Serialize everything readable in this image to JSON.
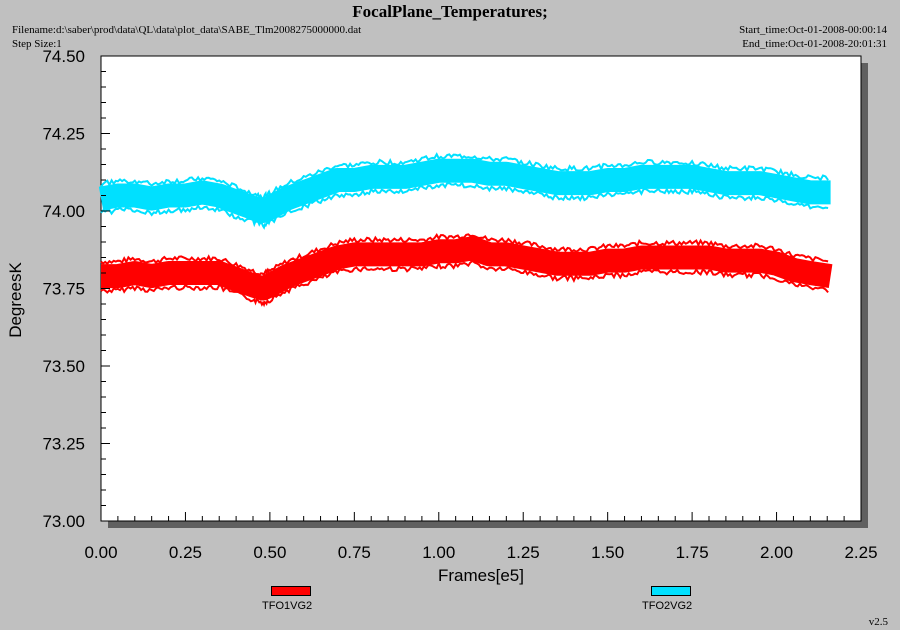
{
  "header": {
    "title": "FocalPlane_Temperatures;",
    "filename": "Filename:d:\\saber\\prod\\data\\QL\\data\\plot_data\\SABE_Tlm2008275000000.dat",
    "step_size": "Step Size:1",
    "start_time": "Start_time:Oct-01-2008-00:00:14",
    "end_time": "End_time:Oct-01-2008-20:01:31"
  },
  "version": "v2.5",
  "chart_data": {
    "type": "line",
    "title": "FocalPlane_Temperatures;",
    "xlabel": "Frames[e5]",
    "ylabel": "DegreesK",
    "xlim": [
      0.0,
      2.25
    ],
    "ylim": [
      73.0,
      74.5
    ],
    "x_ticks": [
      "0.00",
      "0.25",
      "0.50",
      "0.75",
      "1.00",
      "1.25",
      "1.50",
      "1.75",
      "2.00",
      "2.25"
    ],
    "y_ticks": [
      "73.00",
      "73.25",
      "73.50",
      "73.75",
      "74.00",
      "74.25",
      "74.50"
    ],
    "grid": false,
    "legend_position": "bottom",
    "series": [
      {
        "name": "TFO1VG2",
        "color": "#ff0000",
        "x": [
          0.0,
          0.05,
          0.1,
          0.15,
          0.2,
          0.25,
          0.3,
          0.35,
          0.4,
          0.45,
          0.48,
          0.5,
          0.55,
          0.6,
          0.65,
          0.7,
          0.75,
          0.8,
          0.85,
          0.9,
          0.95,
          1.0,
          1.05,
          1.1,
          1.15,
          1.2,
          1.25,
          1.3,
          1.35,
          1.4,
          1.45,
          1.5,
          1.55,
          1.6,
          1.65,
          1.7,
          1.75,
          1.8,
          1.85,
          1.9,
          1.95,
          2.0,
          2.05,
          2.1,
          2.16
        ],
        "y": [
          73.79,
          73.79,
          73.8,
          73.79,
          73.8,
          73.8,
          73.8,
          73.8,
          73.78,
          73.76,
          73.75,
          73.76,
          73.79,
          73.81,
          73.83,
          73.85,
          73.86,
          73.86,
          73.86,
          73.86,
          73.86,
          73.87,
          73.87,
          73.88,
          73.86,
          73.86,
          73.85,
          73.84,
          73.83,
          73.83,
          73.83,
          73.84,
          73.84,
          73.85,
          73.85,
          73.85,
          73.85,
          73.85,
          73.84,
          73.84,
          73.84,
          73.83,
          73.81,
          73.8,
          73.79
        ]
      },
      {
        "name": "TFO2VG2",
        "color": "#00e0ff",
        "x": [
          0.0,
          0.05,
          0.1,
          0.15,
          0.2,
          0.25,
          0.3,
          0.35,
          0.4,
          0.45,
          0.48,
          0.5,
          0.55,
          0.6,
          0.65,
          0.7,
          0.75,
          0.8,
          0.85,
          0.9,
          0.95,
          1.0,
          1.05,
          1.1,
          1.15,
          1.2,
          1.25,
          1.3,
          1.35,
          1.4,
          1.45,
          1.5,
          1.55,
          1.6,
          1.65,
          1.7,
          1.75,
          1.8,
          1.85,
          1.9,
          1.95,
          2.0,
          2.05,
          2.1,
          2.16
        ],
        "y": [
          74.04,
          74.05,
          74.05,
          74.04,
          74.05,
          74.05,
          74.06,
          74.05,
          74.03,
          74.01,
          74.0,
          74.01,
          74.04,
          74.06,
          74.08,
          74.1,
          74.1,
          74.11,
          74.11,
          74.11,
          74.12,
          74.13,
          74.13,
          74.13,
          74.12,
          74.12,
          74.11,
          74.1,
          74.09,
          74.09,
          74.09,
          74.1,
          74.1,
          74.11,
          74.11,
          74.11,
          74.11,
          74.1,
          74.09,
          74.09,
          74.09,
          74.08,
          74.07,
          74.06,
          74.06
        ]
      }
    ]
  }
}
